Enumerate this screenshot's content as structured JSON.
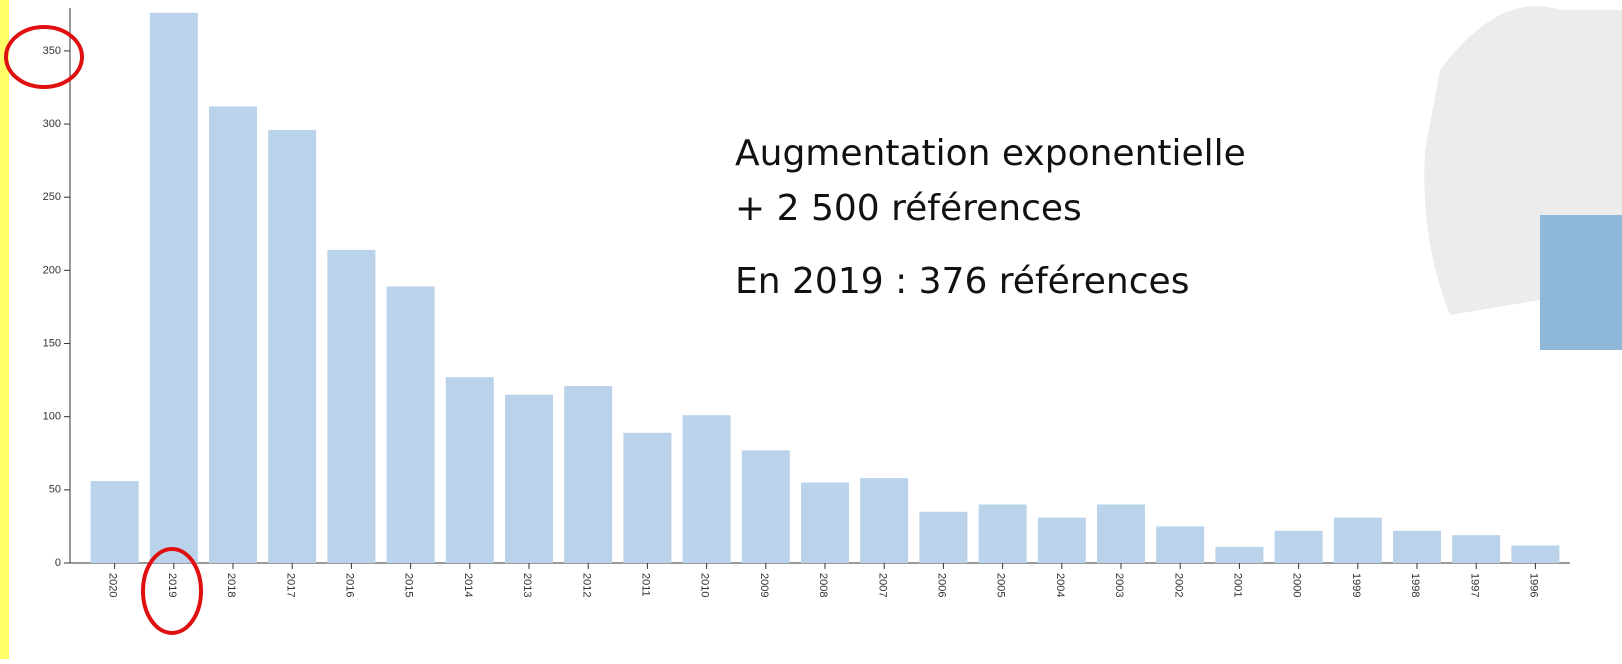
{
  "chart_data": {
    "type": "bar",
    "categories": [
      "2020",
      "2019",
      "2018",
      "2017",
      "2016",
      "2015",
      "2014",
      "2013",
      "2012",
      "2011",
      "2010",
      "2009",
      "2008",
      "2007",
      "2006",
      "2005",
      "2004",
      "2003",
      "2002",
      "2001",
      "2000",
      "1999",
      "1998",
      "1997",
      "1996"
    ],
    "values": [
      56,
      376,
      312,
      296,
      214,
      189,
      127,
      115,
      121,
      89,
      101,
      77,
      55,
      58,
      35,
      40,
      31,
      40,
      25,
      11,
      22,
      31,
      22,
      19,
      12
    ],
    "color": "#bad3ea",
    "ylim": [
      0,
      380
    ],
    "yticks": [
      0,
      50,
      100,
      150,
      200,
      250,
      300,
      350
    ],
    "annotations": [
      "Augmentation exponentielle",
      "+ 2 500 références",
      "En 2019 : 376 références"
    ]
  }
}
